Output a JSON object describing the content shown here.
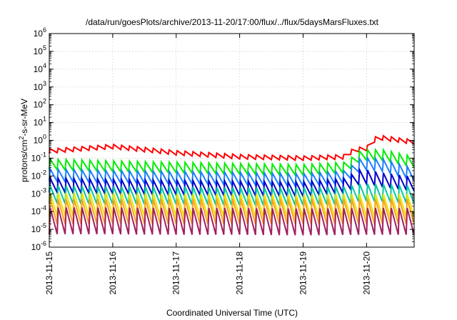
{
  "chart_data": {
    "type": "line",
    "title": "/data/run/goesPlots/archive/2013-11-20/17:00/flux/../flux/5daysMarsFluxes.txt",
    "xlabel": "Coordinated Universal Time (UTC)",
    "ylabel": {
      "pre": "protons/cm",
      "sup": "2",
      "post": "-s-sr-MeV"
    },
    "x_ticks": [
      "2013-11-15",
      "2013-11-16",
      "2013-11-17",
      "2013-11-18",
      "2013-11-19",
      "2013-11-20"
    ],
    "xlim": [
      "2013-11-15T00:00",
      "2013-11-20T18:00"
    ],
    "y_scale": "log",
    "ylim": [
      1e-06,
      1000000.0
    ],
    "y_ticks": [
      {
        "base": "10",
        "exp": "6"
      },
      {
        "base": "10",
        "exp": "5"
      },
      {
        "base": "10",
        "exp": "4"
      },
      {
        "base": "10",
        "exp": "3"
      },
      {
        "base": "10",
        "exp": "2"
      },
      {
        "base": "10",
        "exp": "1"
      },
      {
        "base": "10",
        "exp": "0"
      },
      {
        "base": "10",
        "exp": "-1"
      },
      {
        "base": "10",
        "exp": "-2"
      },
      {
        "base": "10",
        "exp": "-3"
      },
      {
        "base": "10",
        "exp": "-4"
      },
      {
        "base": "10",
        "exp": "-5"
      },
      {
        "base": "10",
        "exp": "-6"
      }
    ],
    "grid": true,
    "legend": "none",
    "series": [
      {
        "color": "#ff0000",
        "sawtooth": 0.25,
        "points": [
          [
            "2013-11-15T00:00",
            0.25
          ],
          [
            "2013-11-16T00:00",
            0.45
          ],
          [
            "2013-11-17T00:00",
            0.2
          ],
          [
            "2013-11-18T00:00",
            0.12
          ],
          [
            "2013-11-19T00:00",
            0.1
          ],
          [
            "2013-11-19T16:00",
            0.12
          ],
          [
            "2013-11-19T19:00",
            0.28
          ],
          [
            "2013-11-20T00:00",
            0.35
          ],
          [
            "2013-11-20T04:00",
            1.5
          ],
          [
            "2013-11-20T18:00",
            0.8
          ]
        ]
      },
      {
        "color": "#00ee00",
        "sawtooth": 0.6,
        "points": [
          [
            "2013-11-15T00:00",
            0.045
          ],
          [
            "2013-11-16T00:00",
            0.035
          ],
          [
            "2013-11-17T00:00",
            0.03
          ],
          [
            "2013-11-18T00:00",
            0.025
          ],
          [
            "2013-11-19T00:00",
            0.022
          ],
          [
            "2013-11-19T16:00",
            0.03
          ],
          [
            "2013-11-19T22:00",
            0.15
          ],
          [
            "2013-11-20T06:00",
            0.15
          ],
          [
            "2013-11-20T18:00",
            0.06
          ]
        ]
      },
      {
        "color": "#1e7fff",
        "sawtooth": 0.7,
        "points": [
          [
            "2013-11-15T00:00",
            0.011
          ],
          [
            "2013-11-16T00:00",
            0.009
          ],
          [
            "2013-11-17T00:00",
            0.008
          ],
          [
            "2013-11-18T00:00",
            0.007
          ],
          [
            "2013-11-19T00:00",
            0.006
          ],
          [
            "2013-11-19T16:00",
            0.009
          ],
          [
            "2013-11-19T22:00",
            0.05
          ],
          [
            "2013-11-20T06:00",
            0.04
          ],
          [
            "2013-11-20T18:00",
            0.012
          ]
        ]
      },
      {
        "color": "#0000cc",
        "sawtooth": 0.8,
        "points": [
          [
            "2013-11-15T00:00",
            0.003
          ],
          [
            "2013-11-16T00:00",
            0.0025
          ],
          [
            "2013-11-17T00:00",
            0.0022
          ],
          [
            "2013-11-18T00:00",
            0.002
          ],
          [
            "2013-11-19T00:00",
            0.0018
          ],
          [
            "2013-11-19T16:00",
            0.003
          ],
          [
            "2013-11-19T22:00",
            0.01
          ],
          [
            "2013-11-20T06:00",
            0.006
          ],
          [
            "2013-11-20T18:00",
            0.0035
          ]
        ]
      },
      {
        "color": "#00c8a0",
        "sawtooth": 1.0,
        "points": [
          [
            "2013-11-15T00:00",
            0.0009
          ],
          [
            "2013-11-16T00:00",
            0.0008
          ],
          [
            "2013-11-17T00:00",
            0.0008
          ],
          [
            "2013-11-18T00:00",
            0.0007
          ],
          [
            "2013-11-19T00:00",
            0.0007
          ],
          [
            "2013-11-19T16:00",
            0.0008
          ],
          [
            "2013-11-19T22:00",
            0.0012
          ],
          [
            "2013-11-20T06:00",
            0.0011
          ],
          [
            "2013-11-20T18:00",
            0.0009
          ]
        ]
      },
      {
        "color": "#e6e600",
        "sawtooth": 1.3,
        "points": [
          [
            "2013-11-15T00:00",
            0.00025
          ],
          [
            "2013-11-16T00:00",
            0.00025
          ],
          [
            "2013-11-17T00:00",
            0.00022
          ],
          [
            "2013-11-18T00:00",
            0.00022
          ],
          [
            "2013-11-19T00:00",
            0.0002
          ],
          [
            "2013-11-20T00:00",
            0.00022
          ],
          [
            "2013-11-20T18:00",
            0.00022
          ]
        ]
      },
      {
        "color": "#ffa020",
        "sawtooth": 1.4,
        "points": [
          [
            "2013-11-15T00:00",
            0.0001
          ],
          [
            "2013-11-16T00:00",
            0.0001
          ],
          [
            "2013-11-17T00:00",
            0.0001
          ],
          [
            "2013-11-18T00:00",
            0.0001
          ],
          [
            "2013-11-19T00:00",
            0.0001
          ],
          [
            "2013-11-20T00:00",
            0.0001
          ],
          [
            "2013-11-20T18:00",
            0.0001
          ]
        ]
      },
      {
        "color": "#a02060",
        "sawtooth": 1.5,
        "points": [
          [
            "2013-11-15T00:00",
            3e-05
          ],
          [
            "2013-11-16T00:00",
            3e-05
          ],
          [
            "2013-11-17T00:00",
            2.8e-05
          ],
          [
            "2013-11-18T00:00",
            2.8e-05
          ],
          [
            "2013-11-19T00:00",
            2.6e-05
          ],
          [
            "2013-11-20T00:00",
            2.8e-05
          ],
          [
            "2013-11-20T18:00",
            2.8e-05
          ]
        ]
      }
    ]
  }
}
